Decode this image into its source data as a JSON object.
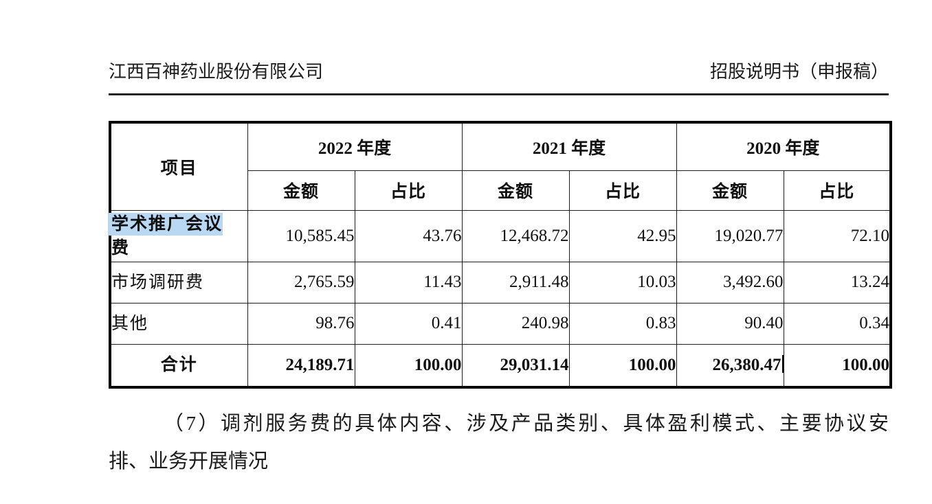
{
  "page_header": {
    "company": "江西百神药业股份有限公司",
    "doc_title": "招股说明书（申报稿）"
  },
  "table": {
    "item_header": "项目",
    "col_groups": [
      {
        "year": "2022 年度",
        "amount_label": "金额",
        "ratio_label": "占比"
      },
      {
        "year": "2021 年度",
        "amount_label": "金额",
        "ratio_label": "占比"
      },
      {
        "year": "2020 年度",
        "amount_label": "金额",
        "ratio_label": "占比"
      }
    ],
    "rows": [
      {
        "label": "学术推广会议费",
        "highlight_text": "学术推广会议",
        "wrap_after_highlight": true,
        "bold_label": true,
        "align": "left",
        "values": [
          "10,585.45",
          "43.76",
          "12,468.72",
          "42.95",
          "19,020.77",
          "72.10"
        ]
      },
      {
        "label": "市场调研费",
        "align": "left",
        "values": [
          "2,765.59",
          "11.43",
          "2,911.48",
          "10.03",
          "3,492.60",
          "13.24"
        ]
      },
      {
        "label": "其他",
        "align": "left",
        "values": [
          "98.76",
          "0.41",
          "240.98",
          "0.83",
          "90.40",
          "0.34"
        ]
      },
      {
        "label": "合计",
        "align": "center",
        "bold_row": true,
        "caret_after_value_index": 4,
        "values": [
          "24,189.71",
          "100.00",
          "29,031.14",
          "100.00",
          "26,380.47",
          "100.00"
        ]
      }
    ]
  },
  "paragraph": {
    "line1": "（7）调剂服务费的具体内容、涉及产品类别、具体盈利模式、主要协议安",
    "line2": "排、业务开展情况"
  },
  "colors": {
    "selection_highlight": "#b9d8f4",
    "text": "#141414",
    "table_border": "#000000"
  }
}
